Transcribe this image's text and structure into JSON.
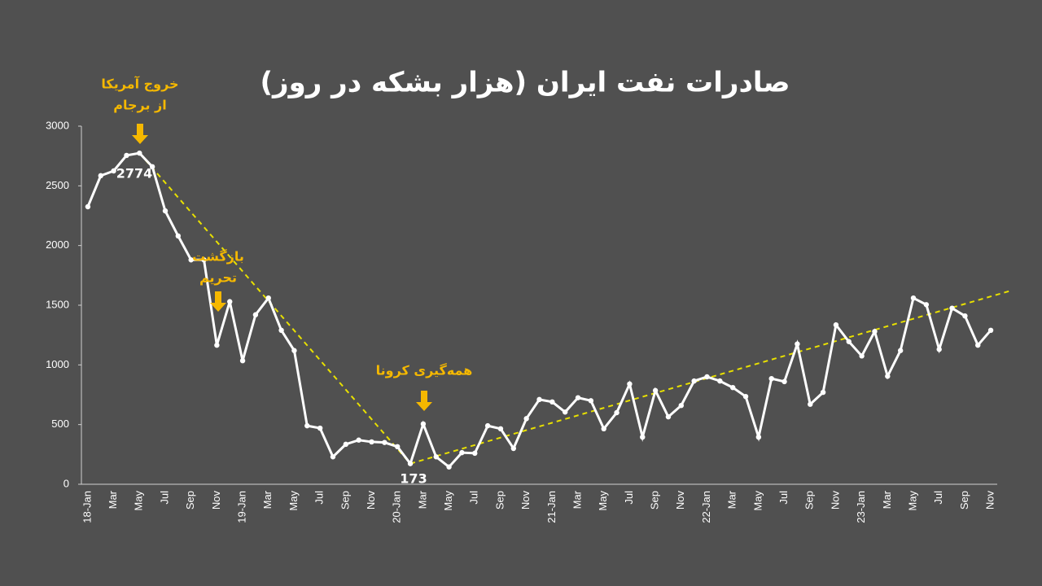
{
  "chart_data": {
    "type": "line",
    "title": "صادرات نفت ایران (هزار بشکه در روز)",
    "categories": [
      "18-Jan",
      null,
      "Mar",
      null,
      "May",
      null,
      "Jul",
      null,
      "Sep",
      null,
      "Nov",
      null,
      "19-Jan",
      null,
      "Mar",
      null,
      "May",
      null,
      "Jul",
      null,
      "Sep",
      null,
      "Nov",
      null,
      "20-Jan",
      null,
      "Mar",
      null,
      "May",
      null,
      "Jul",
      null,
      "Sep",
      null,
      "Nov",
      null,
      "21-Jan",
      null,
      "Mar",
      null,
      "May",
      null,
      "Jul",
      null,
      "Sep",
      null,
      "Nov",
      null,
      "22-Jan",
      null,
      "Mar",
      null,
      "May",
      null,
      "Jul",
      null,
      "Sep",
      null,
      "Nov",
      null,
      "23-Jan",
      null,
      "Mar",
      null,
      "May",
      null,
      "Jul",
      null,
      "Sep",
      null,
      "Nov"
    ],
    "series": [
      {
        "color": "#ffffff",
        "values": [
          2325,
          2585,
          2625,
          2755,
          2774,
          2660,
          2290,
          2080,
          1880,
          1880,
          1165,
          1530,
          1035,
          1420,
          1560,
          1290,
          1120,
          490,
          470,
          230,
          335,
          370,
          355,
          350,
          315,
          173,
          505,
          230,
          145,
          265,
          260,
          490,
          465,
          300,
          550,
          710,
          690,
          605,
          725,
          700,
          465,
          600,
          840,
          395,
          785,
          565,
          660,
          865,
          900,
          865,
          810,
          735,
          395,
          885,
          860,
          1175,
          670,
          770,
          1335,
          1195,
          1075,
          1280,
          905,
          1120,
          1560,
          1505,
          1130,
          1475,
          1410,
          1165,
          1290
        ]
      }
    ],
    "trendlines": [
      {
        "color": "#e8e000",
        "x": [
          4,
          25
        ],
        "y": [
          2774,
          173
        ]
      },
      {
        "color": "#e8e000",
        "x": [
          25,
          71.5
        ],
        "y": [
          173,
          1620
        ]
      }
    ],
    "annotations": [
      {
        "text": [
          "خروج آمریکا",
          "از برجام"
        ],
        "color": "#f5b800"
      },
      {
        "text": [
          "بازگشت",
          "تحریم"
        ],
        "color": "#f5b800"
      },
      {
        "text": [
          "همه‌گیری کرونا"
        ],
        "color": "#f5b800"
      }
    ],
    "ylim": [
      0,
      3000
    ],
    "yticks": [
      0,
      500,
      1000,
      1500,
      2000,
      2500,
      3000
    ],
    "grid": false
  }
}
